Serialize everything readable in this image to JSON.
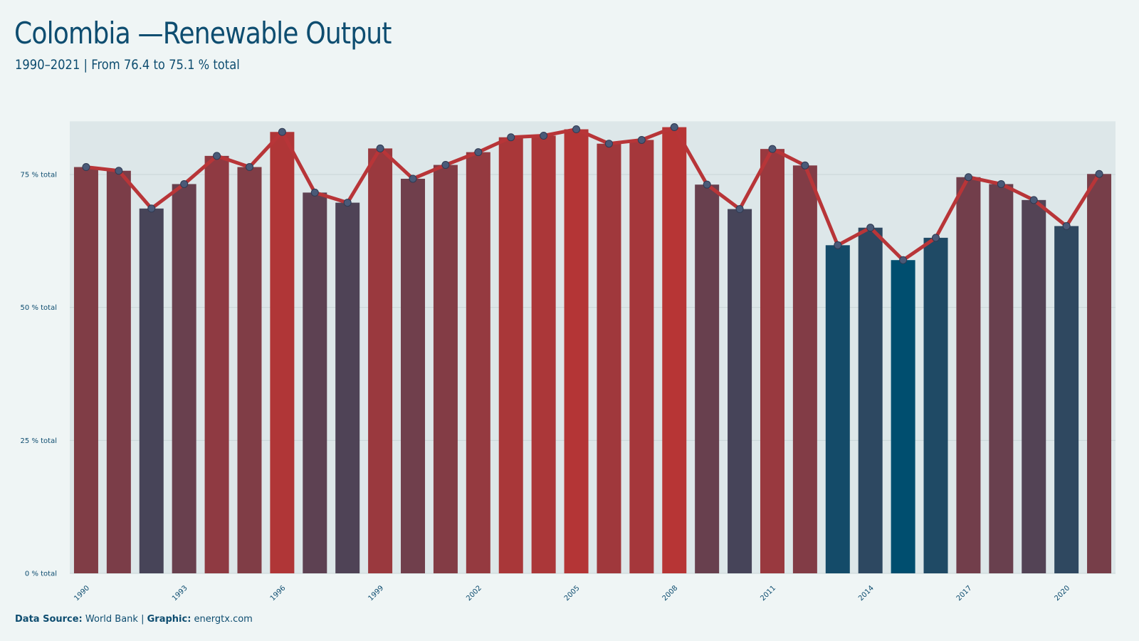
{
  "title": "Colombia —Renewable Output",
  "subtitle": "1990–2021 | From 76.4 to 75.1 % total",
  "footer": {
    "source_label": "Data Source:",
    "source_value": "World Bank",
    "separator": "|",
    "graphic_label": "Graphic:",
    "graphic_value": "energtx.com"
  },
  "colors": {
    "background": "#eff5f5",
    "high": "#b73535",
    "low": "#004e6f",
    "line": "#b83538",
    "point_fill": "#4a5a78",
    "grid": "#d3dedf",
    "text": "#0e4d70"
  },
  "chart_data": {
    "type": "bar",
    "overlay": "line",
    "unit": "% total",
    "ylim": [
      0,
      85
    ],
    "yticks": [
      0,
      25,
      50,
      75
    ],
    "ytick_labels": [
      "0 % total",
      "25 % total",
      "50 % total",
      "75 % total"
    ],
    "xtick_labels": [
      "1990",
      "1993",
      "1996",
      "1999",
      "2002",
      "2005",
      "2008",
      "2011",
      "2014",
      "2017",
      "2020"
    ],
    "grid": true,
    "x": [
      1990,
      1991,
      1992,
      1993,
      1994,
      1995,
      1996,
      1997,
      1998,
      1999,
      2000,
      2001,
      2002,
      2003,
      2004,
      2005,
      2006,
      2007,
      2008,
      2009,
      2010,
      2011,
      2012,
      2013,
      2014,
      2015,
      2016,
      2017,
      2018,
      2019,
      2020,
      2021
    ],
    "values": [
      76.4,
      75.7,
      68.6,
      73.2,
      78.5,
      76.4,
      83.0,
      71.6,
      69.7,
      79.9,
      74.2,
      76.8,
      79.2,
      82.0,
      82.3,
      83.5,
      80.8,
      81.5,
      83.9,
      73.1,
      68.5,
      79.8,
      76.7,
      61.7,
      65.0,
      58.9,
      63.1,
      74.5,
      73.2,
      70.2,
      65.3,
      75.1
    ]
  }
}
